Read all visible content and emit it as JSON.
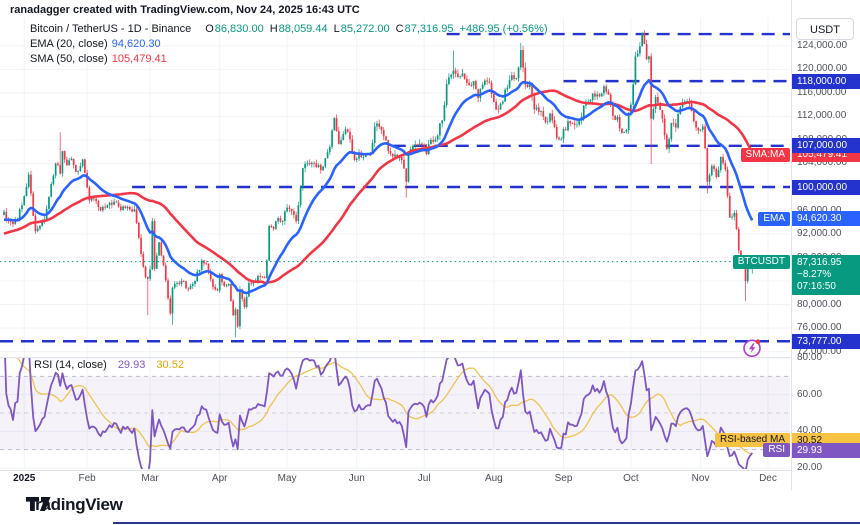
{
  "watermark": "ranadagger created with TradingView.com, Nov 24, 2025 16:43 UTC",
  "legend": {
    "symbol": "Bitcoin / TetherUS - 1D - Binance",
    "o_label": "O",
    "o_value": "86,830.00",
    "h_label": "H",
    "h_value": "88,059.44",
    "l_label": "L",
    "l_value": "85,272.00",
    "c_label": "C",
    "c_value": "87,316.95",
    "change": "+486.95 (+0.56%)",
    "ema_label": "EMA (20, close)",
    "ema_value": "94,620.30",
    "sma_label": "SMA (50, close)",
    "sma_value": "105,479.41"
  },
  "rsi_legend": {
    "label": "RSI (14, close)",
    "rsi_value": "29.93",
    "ma_value": "30.52"
  },
  "axis": {
    "usdt_button": "USDT",
    "price_ticks": [
      {
        "p": 124000,
        "label": "124,000.00"
      },
      {
        "p": 120000,
        "label": "120,000.00"
      },
      {
        "p": 116000,
        "label": "116,000.00"
      },
      {
        "p": 112000,
        "label": "112,000.00"
      },
      {
        "p": 108000,
        "label": "108,000.00"
      },
      {
        "p": 104000,
        "label": "104,000.00"
      },
      {
        "p": 96000,
        "label": "96,000.00"
      },
      {
        "p": 92000,
        "label": "92,000.00"
      },
      {
        "p": 88000,
        "label": "88,000.00"
      },
      {
        "p": 84000,
        "label": "84,000.00"
      },
      {
        "p": 80000,
        "label": "80,000.00"
      },
      {
        "p": 76000,
        "label": "76,000.00"
      },
      {
        "p": 72000,
        "label": "72,000.00"
      }
    ],
    "rsi_ticks": [
      {
        "v": 80,
        "label": "80.00"
      },
      {
        "v": 60,
        "label": "60.00"
      },
      {
        "v": 40,
        "label": "40.00"
      },
      {
        "v": 20,
        "label": "20.00"
      }
    ],
    "badges": {
      "sma_chip": "SMA:MA",
      "sma_value": "105,479.41",
      "ema_chip": "EMA",
      "ema_value": "94,620.30",
      "price_chip": "BTCUSDT",
      "price_value": "87,316.95",
      "price_pct": "−8.27%",
      "price_countdown": "07:16:50",
      "rsi_ma_chip": "RSI-based MA",
      "rsi_ma_value": "30.52",
      "rsi_chip": "RSI",
      "rsi_value": "29.93"
    }
  },
  "footer": {
    "brand": "TradingView"
  },
  "colors": {
    "up": "#089981",
    "down": "#F23645",
    "ema": "#2962FF",
    "sma": "#F23645",
    "level": "#2433CE",
    "current_line": "#089981",
    "rsi": "#7E57C2",
    "rsi_ma": "#EFC350",
    "band_fill": "rgba(126,87,194,0.08)",
    "band_line": "#9aa0ab",
    "grid": "#f0f3fa",
    "separator": "#e0e3eb",
    "badge_yellow": "#F5C242",
    "bottom_bar": "#283593"
  },
  "chart_data": {
    "type": "candlestick",
    "title": "Bitcoin / TetherUS - 1D - Binance",
    "interval": "1D",
    "legend_note": "prices in USDT; series reconstructed from chart",
    "current": {
      "open": 86830.0,
      "high": 88059.44,
      "low": 85272.0,
      "price": 87316.95,
      "change": 486.95,
      "change_pct": 0.56,
      "pct_label": "−8.27%",
      "countdown": "07:16:50"
    },
    "ema": {
      "period": 20,
      "value": 94620.3
    },
    "sma": {
      "period": 50,
      "value": 105479.41
    },
    "rsi": {
      "period": 14,
      "value": 29.93,
      "ma_value": 30.52,
      "bands": [
        70,
        50,
        30
      ],
      "range_shown": [
        20,
        80
      ]
    },
    "y_axis": {
      "tick_step": 4000,
      "shown_min": 72000,
      "shown_max": 124000
    },
    "levels": [
      {
        "price": 126000,
        "label": "",
        "start_d": 197
      },
      {
        "price": 118000,
        "label": "118,000.00",
        "start_d": 249
      },
      {
        "price": 107000,
        "label": "107,000.00",
        "start_d": 173
      },
      {
        "price": 100000,
        "label": "100,000.00",
        "start_d": 57
      },
      {
        "price": 73777,
        "label": "73,777.00",
        "start_d": 0,
        "alert": true
      }
    ],
    "x_ticks": [
      {
        "d": 9,
        "label": "2025",
        "major": true
      },
      {
        "d": 37,
        "label": "Feb"
      },
      {
        "d": 65,
        "label": "Mar"
      },
      {
        "d": 96,
        "label": "Apr"
      },
      {
        "d": 126,
        "label": "May"
      },
      {
        "d": 157,
        "label": "Jun"
      },
      {
        "d": 187,
        "label": "Jul"
      },
      {
        "d": 218,
        "label": "Aug"
      },
      {
        "d": 249,
        "label": "Sep"
      },
      {
        "d": 279,
        "label": "Oct"
      },
      {
        "d": 310,
        "label": "Nov"
      },
      {
        "d": 340,
        "label": "Dec"
      }
    ],
    "days_total": 334,
    "anchors": [
      [
        0,
        95800
      ],
      [
        2,
        94200
      ],
      [
        4,
        93700
      ],
      [
        6,
        94400
      ],
      [
        8,
        96900
      ],
      [
        11,
        102100
      ],
      [
        13,
        95100
      ],
      [
        14,
        92500
      ],
      [
        18,
        94500
      ],
      [
        21,
        100500
      ],
      [
        23,
        104000
      ],
      [
        25,
        102300
      ],
      [
        26,
        106100
      ],
      [
        28,
        103700
      ],
      [
        30,
        104800
      ],
      [
        32,
        102600
      ],
      [
        35,
        104700
      ],
      [
        36,
        102400
      ],
      [
        38,
        97700
      ],
      [
        40,
        98000
      ],
      [
        42,
        96600
      ],
      [
        45,
        96500
      ],
      [
        49,
        97500
      ],
      [
        52,
        96100
      ],
      [
        55,
        96600
      ],
      [
        58,
        96200
      ],
      [
        60,
        91400
      ],
      [
        61,
        88600
      ],
      [
        63,
        84700
      ],
      [
        64,
        84400
      ],
      [
        65,
        86000
      ],
      [
        66,
        94200
      ],
      [
        67,
        86100
      ],
      [
        69,
        90600
      ],
      [
        71,
        86700
      ],
      [
        74,
        78500
      ],
      [
        75,
        82900
      ],
      [
        77,
        83700
      ],
      [
        79,
        84000
      ],
      [
        82,
        82600
      ],
      [
        85,
        84000
      ],
      [
        88,
        87500
      ],
      [
        90,
        86900
      ],
      [
        92,
        84300
      ],
      [
        94,
        82600
      ],
      [
        95,
        82400
      ],
      [
        96,
        85200
      ],
      [
        98,
        83200
      ],
      [
        100,
        83500
      ],
      [
        102,
        78200
      ],
      [
        103,
        79200
      ],
      [
        104,
        76300
      ],
      [
        105,
        82600
      ],
      [
        107,
        79600
      ],
      [
        109,
        83700
      ],
      [
        111,
        84000
      ],
      [
        113,
        84900
      ],
      [
        116,
        84500
      ],
      [
        117,
        87500
      ],
      [
        118,
        93400
      ],
      [
        120,
        92900
      ],
      [
        122,
        94700
      ],
      [
        124,
        94200
      ],
      [
        126,
        96500
      ],
      [
        128,
        95900
      ],
      [
        130,
        94200
      ],
      [
        133,
        103200
      ],
      [
        135,
        104100
      ],
      [
        137,
        104100
      ],
      [
        139,
        103400
      ],
      [
        142,
        103500
      ],
      [
        145,
        106800
      ],
      [
        146,
        109600
      ],
      [
        147,
        111700
      ],
      [
        149,
        107300
      ],
      [
        151,
        109000
      ],
      [
        153,
        109400
      ],
      [
        155,
        105600
      ],
      [
        156,
        104600
      ],
      [
        158,
        105800
      ],
      [
        160,
        105100
      ],
      [
        163,
        105700
      ],
      [
        165,
        110300
      ],
      [
        167,
        110200
      ],
      [
        169,
        108600
      ],
      [
        171,
        106100
      ],
      [
        174,
        105500
      ],
      [
        177,
        104600
      ],
      [
        179,
        100900
      ],
      [
        180,
        105700
      ],
      [
        182,
        107000
      ],
      [
        184,
        107100
      ],
      [
        186,
        107200
      ],
      [
        188,
        105600
      ],
      [
        190,
        108000
      ],
      [
        192,
        108100
      ],
      [
        195,
        111300
      ],
      [
        197,
        117500
      ],
      [
        199,
        119100
      ],
      [
        200,
        119800
      ],
      [
        202,
        118700
      ],
      [
        204,
        119300
      ],
      [
        207,
        117300
      ],
      [
        209,
        118000
      ],
      [
        211,
        115100
      ],
      [
        214,
        118100
      ],
      [
        216,
        117700
      ],
      [
        217,
        115800
      ],
      [
        219,
        113200
      ],
      [
        221,
        114200
      ],
      [
        224,
        116900
      ],
      [
        226,
        119000
      ],
      [
        228,
        118500
      ],
      [
        230,
        123300
      ],
      [
        232,
        117400
      ],
      [
        234,
        117400
      ],
      [
        236,
        113200
      ],
      [
        239,
        112900
      ],
      [
        241,
        111000
      ],
      [
        243,
        112500
      ],
      [
        246,
        108400
      ],
      [
        248,
        108200
      ],
      [
        251,
        111200
      ],
      [
        253,
        110800
      ],
      [
        256,
        111300
      ],
      [
        259,
        114300
      ],
      [
        262,
        115900
      ],
      [
        265,
        115400
      ],
      [
        267,
        117100
      ],
      [
        269,
        115700
      ],
      [
        271,
        112100
      ],
      [
        273,
        111900
      ],
      [
        275,
        109200
      ],
      [
        277,
        109700
      ],
      [
        278,
        112400
      ],
      [
        279,
        114000
      ],
      [
        281,
        122200
      ],
      [
        283,
        123900
      ],
      [
        284,
        126200
      ],
      [
        286,
        121700
      ],
      [
        287,
        122200
      ],
      [
        288,
        111600
      ],
      [
        290,
        115300
      ],
      [
        292,
        113100
      ],
      [
        294,
        108800
      ],
      [
        295,
        106500
      ],
      [
        297,
        110900
      ],
      [
        299,
        110100
      ],
      [
        301,
        113600
      ],
      [
        304,
        114600
      ],
      [
        306,
        112900
      ],
      [
        308,
        110100
      ],
      [
        309,
        109600
      ],
      [
        311,
        110300
      ],
      [
        312,
        106600
      ],
      [
        313,
        100900
      ],
      [
        315,
        103600
      ],
      [
        317,
        101700
      ],
      [
        319,
        105100
      ],
      [
        321,
        103000
      ],
      [
        323,
        94800
      ],
      [
        325,
        95600
      ],
      [
        327,
        89200
      ],
      [
        329,
        86600
      ],
      [
        330,
        84000
      ],
      [
        331,
        86100
      ],
      [
        332,
        86800
      ],
      [
        333,
        87317
      ]
    ],
    "wicks": [
      [
        25,
        "h",
        109300
      ],
      [
        64,
        "l",
        78200
      ],
      [
        75,
        "l",
        76600
      ],
      [
        103,
        "l",
        74400
      ],
      [
        147,
        "h",
        111900
      ],
      [
        179,
        "l",
        98200
      ],
      [
        200,
        "h",
        123200
      ],
      [
        230,
        "h",
        124500
      ],
      [
        284,
        "h",
        126300
      ],
      [
        288,
        "l",
        103900
      ],
      [
        313,
        "l",
        98900
      ],
      [
        330,
        "l",
        80600
      ]
    ]
  }
}
